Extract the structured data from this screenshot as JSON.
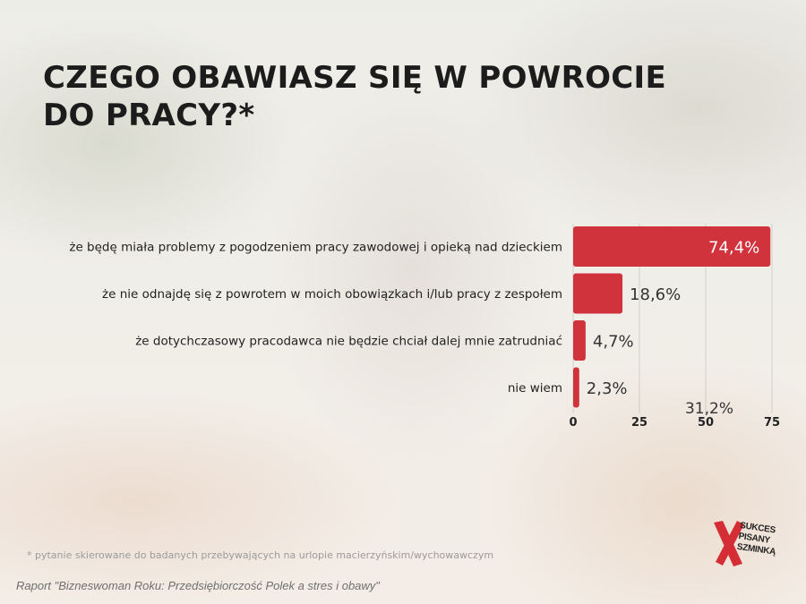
{
  "title": "CZEGO OBAWIASZ SIĘ W POWROCIE DO PRACY?*",
  "footnote": "* pytanie skierowane do badanych  przebywających na urlopie macierzyńskim/wychowawczym",
  "source": "Raport \"Bizneswoman Roku: Przedsiębiorczość Polek a stres i obawy\"",
  "logo": {
    "lines": [
      "SUKCES",
      "PISANY",
      "SZMINKĄ"
    ],
    "mark_color": "#d42d35",
    "icon": "red-x-mark"
  },
  "colors": {
    "bar": "#d1333d",
    "bar_label_inside": "#ffffff",
    "text": "#222222"
  },
  "chart_data": {
    "type": "bar",
    "orientation": "horizontal",
    "categories": [
      "że będę miała problemy z pogodzeniem pracy zawodowej i opieką nad dzieckiem",
      "że nie odnajdę się z powrotem w moich obowiązkach i/lub pracy z zespołem",
      "że dotychczasowy pracodawca nie będzie chciał dalej mnie zatrudniać",
      "nie wiem"
    ],
    "values": [
      74.4,
      18.6,
      4.7,
      2.3
    ],
    "value_labels": [
      "74,4%",
      "18,6%",
      "4,7%",
      "2,3%"
    ],
    "xlim": [
      0,
      75
    ],
    "xticks": [
      0,
      25,
      50,
      75
    ],
    "xtick_labels": [
      "0",
      "25",
      "50",
      "75"
    ],
    "annotation": "31,2%",
    "grid": true
  }
}
